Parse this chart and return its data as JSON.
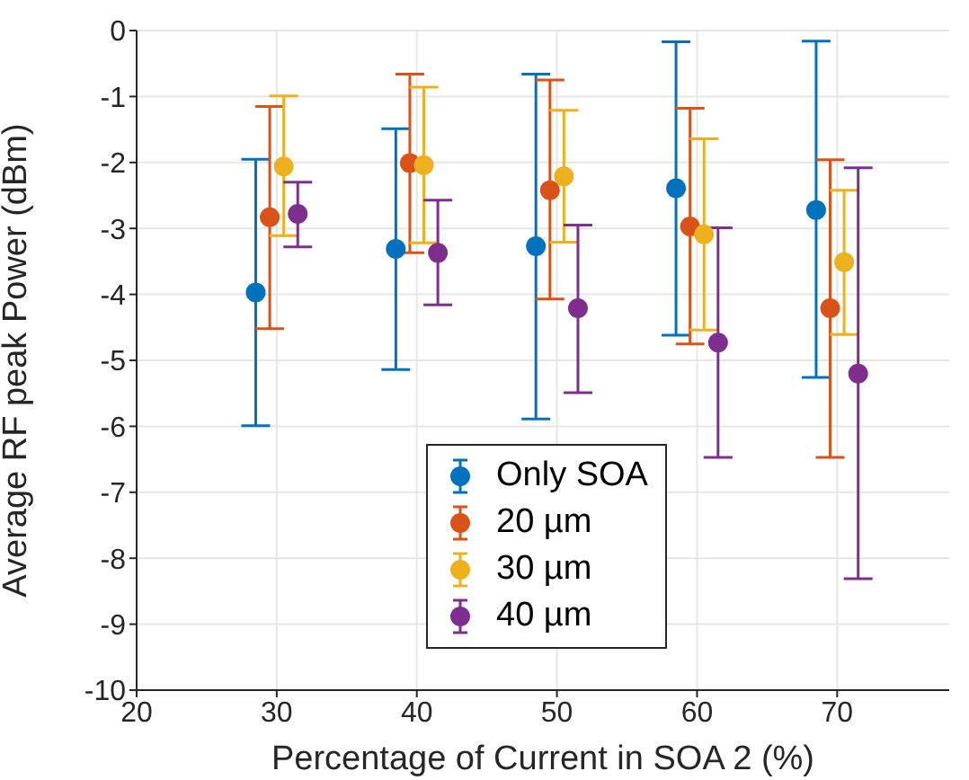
{
  "chart_data": {
    "type": "scatter",
    "xlabel": "Percentage of Current in SOA 2 (%)",
    "ylabel": "Average RF peak Power (dBm)",
    "xlim": [
      20,
      78
    ],
    "xticks": [
      20,
      30,
      40,
      50,
      60,
      70
    ],
    "ylim": [
      -10,
      0
    ],
    "yticks": [
      -10,
      -9,
      -8,
      -7,
      -6,
      -5,
      -4,
      -3,
      -2,
      -1,
      0
    ],
    "grid": true,
    "legend": "bottom",
    "marker": "circle",
    "series": [
      {
        "name": "Only SOA",
        "color": "#0072bd",
        "x": [
          28.5,
          38.5,
          48.5,
          58.5,
          68.5
        ],
        "values": [
          -3.97,
          -3.31,
          -3.27,
          -2.39,
          -2.72
        ],
        "errors": [
          [
            -5.99,
            -1.95
          ],
          [
            -5.14,
            -1.49
          ],
          [
            -5.89,
            -0.66
          ],
          [
            -4.62,
            -0.17
          ],
          [
            -5.26,
            -0.16
          ]
        ]
      },
      {
        "name": "20 µm",
        "color": "#d95319",
        "x": [
          29.5,
          39.5,
          49.5,
          59.5,
          69.5
        ],
        "values": [
          -2.83,
          -2.01,
          -2.42,
          -2.97,
          -4.21
        ],
        "errors": [
          [
            -4.52,
            -1.15
          ],
          [
            -3.37,
            -0.66
          ],
          [
            -4.07,
            -0.75
          ],
          [
            -4.75,
            -1.18
          ],
          [
            -6.47,
            -1.96
          ]
        ]
      },
      {
        "name": "30 µm",
        "color": "#edb120",
        "x": [
          30.5,
          40.5,
          50.5,
          60.5,
          70.5
        ],
        "values": [
          -2.06,
          -2.04,
          -2.21,
          -3.09,
          -3.51
        ],
        "errors": [
          [
            -3.11,
            -0.99
          ],
          [
            -3.22,
            -0.86
          ],
          [
            -3.21,
            -1.21
          ],
          [
            -4.54,
            -1.64
          ],
          [
            -4.61,
            -2.42
          ]
        ]
      },
      {
        "name": "40 µm",
        "color": "#7e2f8e",
        "x": [
          31.5,
          41.5,
          51.5,
          61.5,
          71.5
        ],
        "values": [
          -2.78,
          -3.37,
          -4.21,
          -4.73,
          -5.2
        ],
        "errors": [
          [
            -3.28,
            -2.3
          ],
          [
            -4.16,
            -2.57
          ],
          [
            -5.49,
            -2.95
          ],
          [
            -6.47,
            -2.99
          ],
          [
            -8.31,
            -2.08
          ]
        ]
      }
    ]
  }
}
